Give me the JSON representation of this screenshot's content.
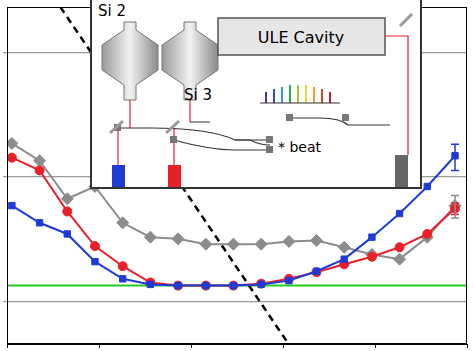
{
  "chart_data": {
    "type": "line",
    "log": true,
    "grid": true,
    "tick_labels": false,
    "xlim": [
      0.1,
      10000
    ],
    "ylim": [
      4.6e-18,
      2.3e-15
    ],
    "xticks": [
      0.1,
      1,
      10,
      100,
      1000,
      10000
    ],
    "yticks": [
      1e-17,
      1e-16,
      1e-15
    ],
    "series": [
      {
        "color": "#1f3bd6",
        "marker": "square",
        "line_style": "solid",
        "x": [
          0.113,
          0.226,
          0.452,
          0.904,
          1.81,
          3.62,
          7.23,
          14.5,
          28.9,
          57.9,
          116,
          231,
          463,
          926,
          1850,
          3700,
          7410
        ],
        "values": [
          5.9e-17,
          4.3e-17,
          3.5e-17,
          2.1e-17,
          1.53e-17,
          1.38e-17,
          1.35e-17,
          1.35e-17,
          1.35e-17,
          1.38e-17,
          1.48e-17,
          1.76e-17,
          2.2e-17,
          3.3e-17,
          5.1e-17,
          8.4e-17,
          1.48e-16
        ],
        "errors": [
          null,
          null,
          null,
          null,
          null,
          null,
          null,
          null,
          null,
          null,
          null,
          null,
          null,
          null,
          null,
          null,
          3.5e-17
        ]
      },
      {
        "color": "#e8202a",
        "marker": "circle",
        "line_style": "solid",
        "x": [
          0.113,
          0.226,
          0.452,
          0.904,
          1.81,
          3.62,
          7.23,
          14.5,
          28.9,
          57.9,
          116,
          231,
          463,
          926,
          1850,
          3700,
          7410
        ],
        "values": [
          1.43e-16,
          1.13e-16,
          5.3e-17,
          2.8e-17,
          1.93e-17,
          1.43e-17,
          1.35e-17,
          1.35e-17,
          1.35e-17,
          1.4e-17,
          1.53e-17,
          1.73e-17,
          2e-17,
          2.3e-17,
          2.74e-17,
          3.5e-17,
          5.6e-17
        ],
        "errors": [
          null,
          null,
          null,
          null,
          null,
          null,
          null,
          null,
          null,
          null,
          null,
          null,
          null,
          null,
          null,
          null,
          6e-18
        ]
      },
      {
        "color": "#8c8c8c",
        "marker": "diamond",
        "line_style": "solid",
        "x": [
          0.113,
          0.226,
          0.452,
          0.904,
          1.81,
          3.62,
          7.23,
          14.5,
          28.9,
          57.9,
          116,
          231,
          463,
          926,
          1850,
          3700,
          7410
        ],
        "values": [
          1.86e-16,
          1.35e-16,
          6.7e-17,
          8.4e-17,
          4.3e-17,
          3.3e-17,
          3.2e-17,
          2.9e-17,
          2.9e-17,
          2.9e-17,
          3.05e-17,
          3.1e-17,
          2.74e-17,
          2.4e-17,
          2.2e-17,
          3.3e-17,
          5.9e-17
        ],
        "errors": [
          null,
          null,
          null,
          null,
          null,
          null,
          null,
          null,
          null,
          null,
          null,
          null,
          null,
          null,
          null,
          null,
          1.2e-17
        ]
      },
      {
        "color": "#000000",
        "marker": "none",
        "line_style": "dashed",
        "x": [
          0.38,
          115
        ],
        "values": [
          2.3e-15,
          4.6e-18
        ]
      },
      {
        "color": "#22cc22",
        "marker": "none",
        "line_style": "solid",
        "x": [
          0.1,
          10000
        ],
        "values": [
          1.35e-17,
          1.35e-17
        ]
      }
    ],
    "annotations": [
      "Si 2",
      "Si 3",
      "ULE Cavity",
      "* beat"
    ]
  }
}
